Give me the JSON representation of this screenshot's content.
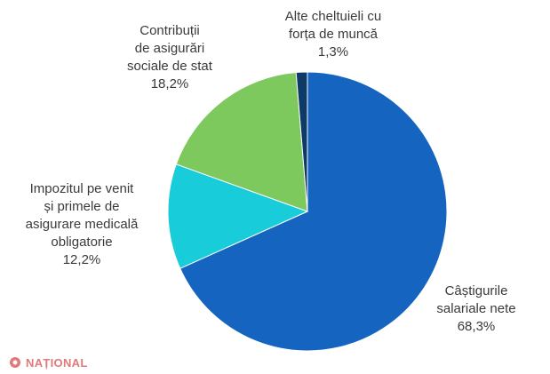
{
  "chart_data": {
    "type": "pie",
    "title": "",
    "start_angle_deg": 0,
    "direction": "clockwise",
    "slices": [
      {
        "name": "Câștigurile salariale nete",
        "label_lines": [
          "Câștigurile",
          "salariale nete"
        ],
        "value_text": "68,3%",
        "value": 68.3,
        "color": "#1565c0"
      },
      {
        "name": "Impozitul pe venit și primele de asigurare medicală obligatorie",
        "label_lines": [
          "Impozitul pe venit",
          "și primele de",
          "asigurare medicală",
          "obligatorie"
        ],
        "value_text": "12,2%",
        "value": 12.2,
        "color": "#19ccd9"
      },
      {
        "name": "Contribuții de asigurări sociale de stat",
        "label_lines": [
          "Contribuții",
          "de asigurări",
          "sociale de stat"
        ],
        "value_text": "18,2%",
        "value": 18.2,
        "color": "#7dc95e"
      },
      {
        "name": "Alte cheltuieli cu forța de muncă",
        "label_lines": [
          "Alte cheltuieli cu",
          "forța de muncă"
        ],
        "value_text": "1,3%",
        "value": 1.3,
        "color": "#0d3a66"
      }
    ]
  },
  "watermark": {
    "text": "NAȚIONAL",
    "color": "#e07a7a"
  }
}
